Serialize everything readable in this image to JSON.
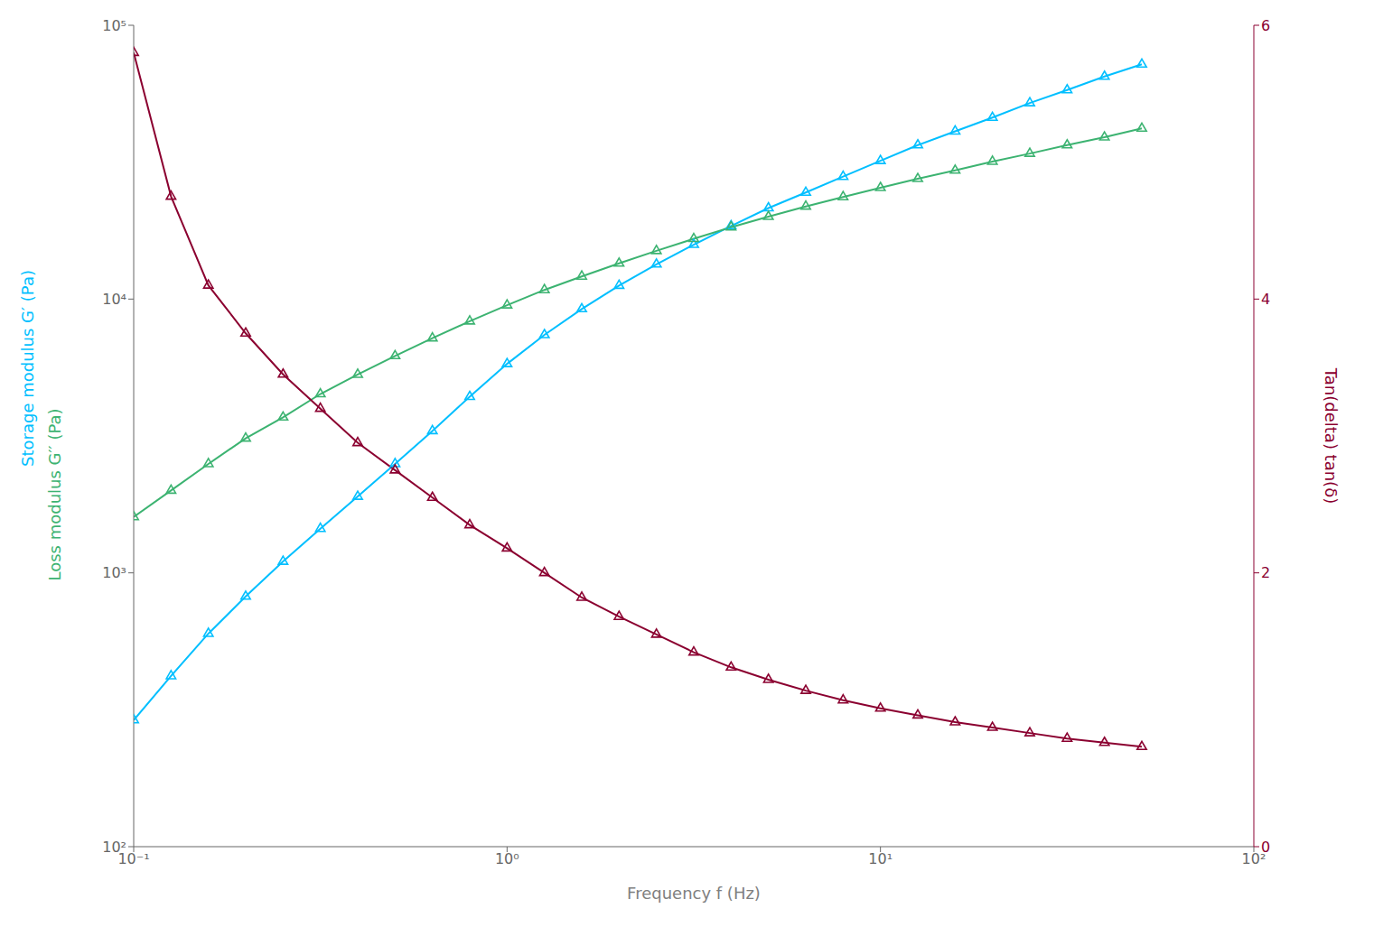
{
  "chart_data": {
    "type": "line",
    "x_label": "Frequency f (Hz)",
    "y_label": [
      "Storage modulus G′ (Pa)",
      "Loss modulus G′′ (Pa)"
    ],
    "y2_label": "Tan(delta) tan(δ)",
    "log": true,
    "grid": false,
    "x": [
      0.1,
      0.1259,
      0.1585,
      0.1995,
      0.2512,
      0.3162,
      0.3981,
      0.5012,
      0.631,
      0.7943,
      1.0,
      1.259,
      1.585,
      1.995,
      2.512,
      3.162,
      3.981,
      5.012,
      6.31,
      7.943,
      10.0,
      12.59,
      15.85,
      19.95,
      25.12,
      31.62,
      39.81,
      50.12
    ],
    "xlim": [
      0.1,
      100
    ],
    "xticks": [
      {
        "value": 0.1,
        "label": "10⁻¹"
      },
      {
        "value": 1,
        "label": "10⁰"
      },
      {
        "value": 10,
        "label": "10¹"
      },
      {
        "value": 100,
        "label": "10²"
      }
    ],
    "ylim": [
      100,
      100000
    ],
    "yticks": [
      {
        "value": 100,
        "label": "10²"
      },
      {
        "value": 1000,
        "label": "10³"
      },
      {
        "value": 10000,
        "label": "10⁴"
      },
      {
        "value": 100000,
        "label": "10⁵"
      }
    ],
    "y2lim": [
      0,
      6
    ],
    "y2ticks": [
      0,
      2,
      4,
      6
    ],
    "series": [
      {
        "color": "#00BFFF",
        "marker": "triangle",
        "line_style": "solid",
        "values": [
          290,
          420,
          600,
          820,
          1100,
          1450,
          1900,
          2500,
          3300,
          4400,
          5800,
          7400,
          9200,
          11200,
          13400,
          15800,
          18500,
          21500,
          24500,
          28000,
          32000,
          36500,
          41000,
          46000,
          52000,
          58000,
          65000,
          72000
        ]
      },
      {
        "color": "#3CB371",
        "marker": "triangle",
        "line_style": "solid",
        "values": [
          1600,
          2000,
          2500,
          3100,
          3700,
          4500,
          5300,
          6200,
          7200,
          8300,
          9500,
          10800,
          12100,
          13500,
          15000,
          16600,
          18300,
          20000,
          21800,
          23600,
          25500,
          27500,
          29500,
          31800,
          34000,
          36500,
          39000,
          42000
        ]
      },
      {
        "color": "#8B0030",
        "marker": "triangle",
        "line_style": "solid",
        "axis": "y2",
        "values": [
          5.8,
          4.75,
          4.1,
          3.75,
          3.45,
          3.2,
          2.95,
          2.75,
          2.55,
          2.35,
          2.18,
          2.0,
          1.82,
          1.68,
          1.55,
          1.42,
          1.31,
          1.22,
          1.14,
          1.07,
          1.01,
          0.96,
          0.91,
          0.87,
          0.83,
          0.79,
          0.76,
          0.73
        ]
      }
    ]
  }
}
